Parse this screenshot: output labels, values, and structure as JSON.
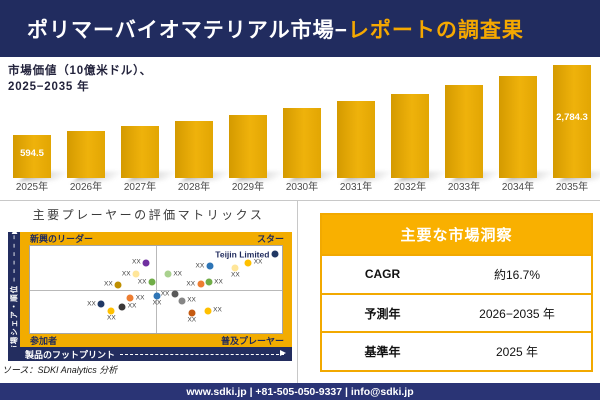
{
  "header": {
    "title_main": "ポリマーバイオマテリアル市場−",
    "title_accent": "レポートの調査果"
  },
  "colors": {
    "navy": "#212C5F",
    "footer_navy": "#2A3475",
    "accent_gold": "#F5A800",
    "bar_gold_dark": "#D49A00",
    "bar_gold_light": "#EFB20B",
    "table_header_gold": "#F9B000",
    "frame_gold": "#F2AC00"
  },
  "chart_data": [
    {
      "type": "bar",
      "title": "市場価値（10億米ドル）、2025−2035 年",
      "title_line1": "市場価値（10億米ドル）、",
      "title_line2": "2025−2035 年",
      "categories": [
        "2025年",
        "2026年",
        "2027年",
        "2028年",
        "2029年",
        "2030年",
        "2031年",
        "2032年",
        "2033年",
        "2034年",
        "2035年"
      ],
      "values": [
        594.5,
        693.8,
        809.7,
        944.9,
        1102.7,
        1286.9,
        1501.8,
        1752.6,
        2045.3,
        2386.9,
        2784.3
      ],
      "bar_labels": [
        "594.5",
        "",
        "",
        "",
        "",
        "",
        "",
        "",
        "",
        "",
        "2,784.3"
      ],
      "ylabel": "市場価値（10億米ドル）",
      "grid": false,
      "legend": false
    },
    {
      "type": "scatter",
      "title": "主要プレーヤーの評価マトリックス",
      "xlabel": "製品のフットプリント",
      "ylabel": "市場シェア・順位",
      "quadrants": {
        "top_left": "新興のリーダー",
        "top_right": "スター",
        "bottom_left": "参加者",
        "bottom_right": "普及プレーヤー"
      },
      "points": [
        {
          "x": 46.1,
          "y": 19.5,
          "color": "#7030A0",
          "label": "XX",
          "pos": "left"
        },
        {
          "x": 42.1,
          "y": 32.2,
          "color": "#FFE699",
          "label": "XX",
          "pos": "left"
        },
        {
          "x": 35.0,
          "y": 44.8,
          "color": "#BF8F00",
          "label": "XX",
          "pos": "left"
        },
        {
          "x": 48.4,
          "y": 41.4,
          "color": "#70AD47",
          "label": "XX",
          "pos": "left"
        },
        {
          "x": 39.8,
          "y": 59.8,
          "color": "#ED7D31",
          "label": "XX",
          "pos": "right"
        },
        {
          "x": 50.4,
          "y": 57.5,
          "color": "#2E75B6",
          "label": "XX",
          "pos": "below"
        },
        {
          "x": 28.3,
          "y": 66.7,
          "color": "#203864",
          "label": "XX",
          "pos": "left"
        },
        {
          "x": 36.6,
          "y": 70.1,
          "color": "#3B3838",
          "label": "XX",
          "pos": "right"
        },
        {
          "x": 32.3,
          "y": 74.7,
          "color": "#FFC000",
          "label": "XX",
          "pos": "below"
        },
        {
          "x": 97.2,
          "y": 9.2,
          "color": "#203864",
          "label": "Teijin Limited",
          "pos": "left"
        },
        {
          "x": 86.6,
          "y": 19.5,
          "color": "#FFC000",
          "label": "XX",
          "pos": "right"
        },
        {
          "x": 81.5,
          "y": 25.3,
          "color": "#FFE699",
          "label": "XX",
          "pos": "below"
        },
        {
          "x": 71.3,
          "y": 23.0,
          "color": "#2E75B6",
          "label": "XX",
          "pos": "left"
        },
        {
          "x": 54.7,
          "y": 32.2,
          "color": "#A9D18E",
          "label": "XX",
          "pos": "right"
        },
        {
          "x": 67.7,
          "y": 43.7,
          "color": "#ED7D31",
          "label": "XX",
          "pos": "left"
        },
        {
          "x": 70.9,
          "y": 41.4,
          "color": "#70AD47",
          "label": "XX",
          "pos": "right"
        },
        {
          "x": 57.5,
          "y": 55.2,
          "color": "#595959",
          "label": "XX",
          "pos": "left"
        },
        {
          "x": 60.2,
          "y": 63.2,
          "color": "#858585",
          "label": "XX",
          "pos": "right"
        },
        {
          "x": 64.2,
          "y": 77.0,
          "color": "#C55A11",
          "label": "XX",
          "pos": "below"
        },
        {
          "x": 70.5,
          "y": 74.7,
          "color": "#FFC000",
          "label": "XX",
          "pos": "right"
        }
      ]
    },
    {
      "type": "table",
      "title": "主要な市場洞察",
      "rows": [
        [
          "CAGR",
          "約16.7%"
        ],
        [
          "予測年",
          "2026−2035 年"
        ],
        [
          "基準年",
          "2025 年"
        ]
      ]
    }
  ],
  "source_note": "ソース：SDKI Analytics 分析",
  "footer": {
    "text": "www.sdki.jp | +81-505-050-9337 | info@sdki.jp"
  }
}
